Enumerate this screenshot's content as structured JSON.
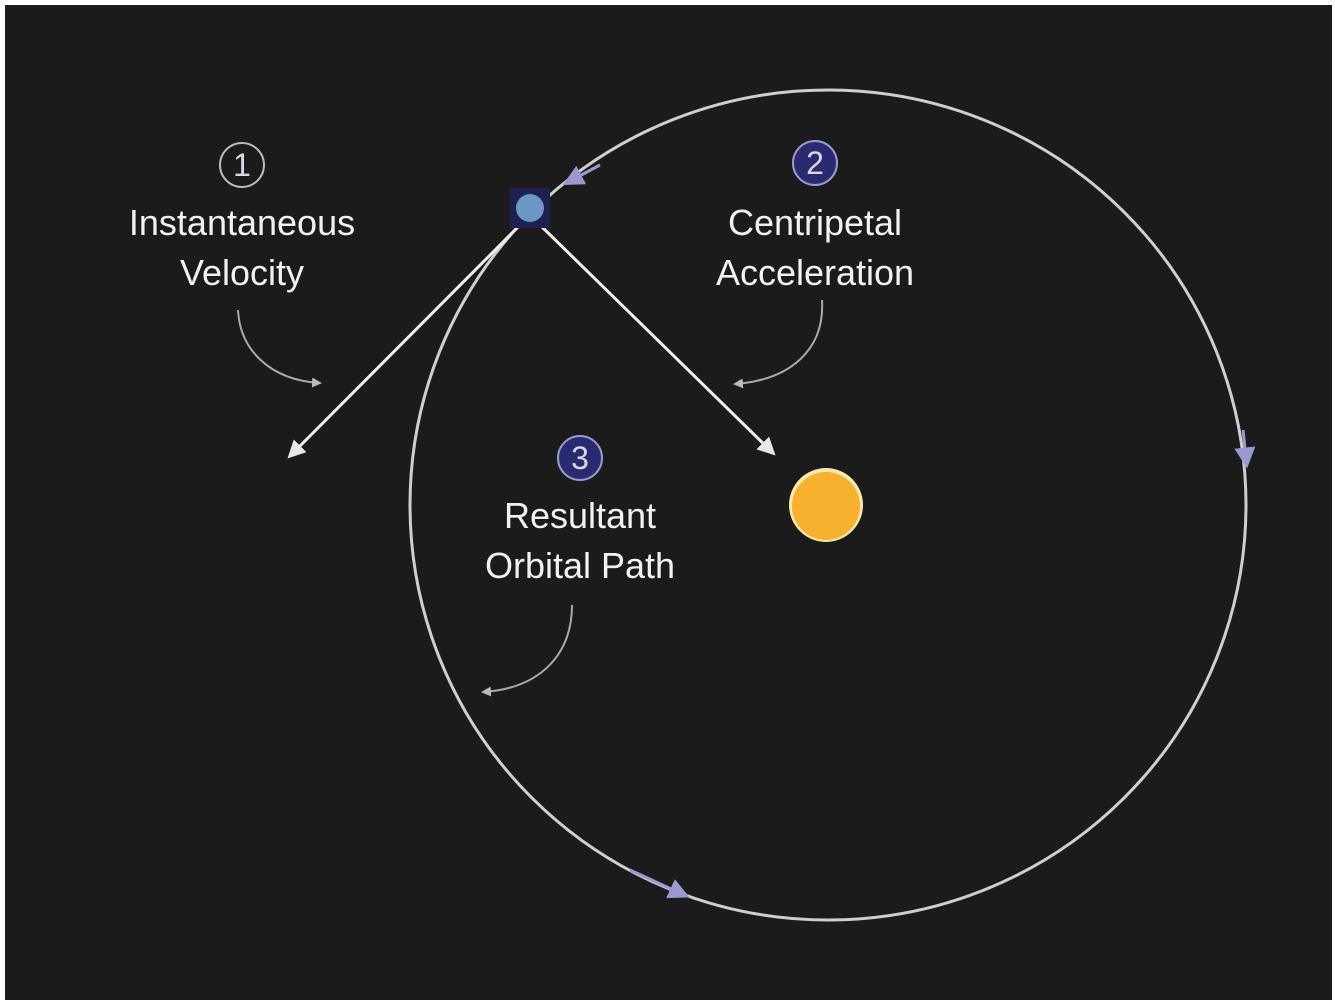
{
  "labels": [
    {
      "number": "1",
      "lines": [
        "Instantaneous",
        "Velocity"
      ]
    },
    {
      "number": "2",
      "lines": [
        "Centripetal",
        "Acceleration"
      ]
    },
    {
      "number": "3",
      "lines": [
        "Resultant",
        "Orbital Path"
      ]
    }
  ]
}
